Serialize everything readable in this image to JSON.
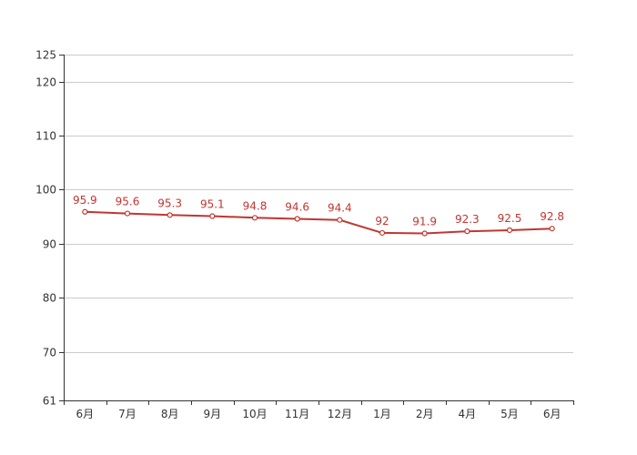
{
  "chart_data": {
    "type": "line",
    "title": "",
    "xlabel": "",
    "ylabel": "",
    "categories": [
      "6月",
      "7月",
      "8月",
      "9月",
      "10月",
      "11月",
      "12月",
      "1月",
      "2月",
      "4月",
      "5月",
      "6月"
    ],
    "series": [
      {
        "values": [
          95.9,
          95.6,
          95.3,
          95.1,
          94.8,
          94.6,
          94.4,
          92,
          91.9,
          92.3,
          92.5,
          92.8
        ],
        "color": "#c23531"
      }
    ],
    "ylim": [
      61,
      125
    ],
    "y_ticks": [
      61,
      70,
      80,
      90,
      100,
      110,
      120,
      125
    ],
    "grid": true,
    "legend": "none"
  }
}
